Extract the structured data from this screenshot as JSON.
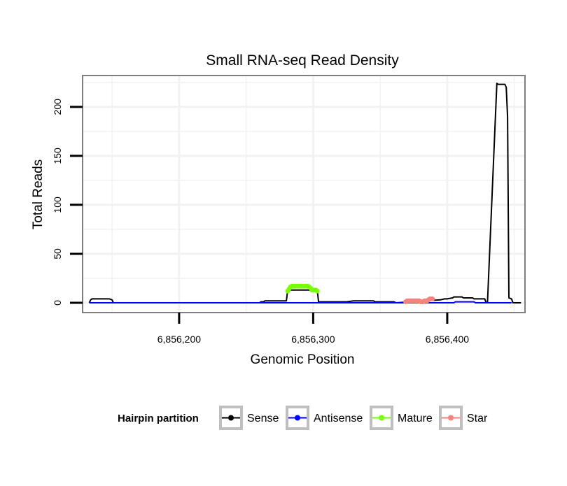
{
  "chart_data": {
    "type": "line",
    "title": "Small RNA-seq Read Density",
    "xlabel": "Genomic Position",
    "ylabel": "Total Reads",
    "xlim": [
      6856128,
      6856458
    ],
    "ylim": [
      -10,
      232
    ],
    "x_ticks": [
      6856200,
      6856300,
      6856400
    ],
    "x_tick_labels": [
      "6,856,200",
      "6,856,300",
      "6,856,400"
    ],
    "y_ticks": [
      0,
      50,
      100,
      150,
      200
    ],
    "y_tick_labels": [
      "0",
      "50",
      "100",
      "150",
      "200"
    ],
    "grid": true,
    "legend": {
      "title": "Hairpin partition",
      "position": "bottom",
      "entries": [
        "Sense",
        "Antisense",
        "Mature",
        "Star"
      ]
    },
    "series": [
      {
        "name": "Sense",
        "color": "#000000",
        "style": "line",
        "x": [
          6856133,
          6856134,
          6856135,
          6856148,
          6856150,
          6856151,
          6856260,
          6856261,
          6856263,
          6856264,
          6856280,
          6856281,
          6856303,
          6856304,
          6856305,
          6856320,
          6856325,
          6856330,
          6856332,
          6856345,
          6856346,
          6856360,
          6856362,
          6856395,
          6856398,
          6856400,
          6856404,
          6856405,
          6856411,
          6856412,
          6856419,
          6856420,
          6856428,
          6856429,
          6856430,
          6856437,
          6856438,
          6856443,
          6856444,
          6856445,
          6856446,
          6856448,
          6856449,
          6856450,
          6856455
        ],
        "y": [
          0,
          3,
          4,
          4,
          3,
          0,
          0,
          1,
          1,
          2,
          2,
          13,
          13,
          1,
          1,
          1,
          1,
          2,
          2,
          2,
          1,
          1,
          0,
          3,
          4,
          4,
          5,
          6,
          6,
          5,
          5,
          4,
          4,
          0,
          0,
          224,
          223,
          223,
          220,
          190,
          5,
          4,
          0,
          0,
          0
        ]
      },
      {
        "name": "Antisense",
        "color": "#0000ff",
        "style": "line",
        "x": [
          6856133,
          6856405,
          6856406,
          6856420,
          6856421,
          6856448
        ],
        "y": [
          0,
          0,
          1,
          1,
          0,
          0
        ]
      },
      {
        "name": "Mature",
        "color": "#77ff00",
        "style": "points",
        "x": [
          6856281,
          6856282,
          6856283,
          6856284,
          6856285,
          6856286,
          6856287,
          6856288,
          6856289,
          6856290,
          6856291,
          6856292,
          6856293,
          6856294,
          6856295,
          6856296,
          6856297,
          6856298,
          6856299,
          6856300,
          6856301,
          6856302,
          6856303
        ],
        "y": [
          12,
          14,
          16,
          17,
          17,
          17,
          17,
          17,
          17,
          17,
          17,
          17,
          17,
          17,
          17,
          17,
          16,
          15,
          13,
          13,
          13,
          13,
          12
        ]
      },
      {
        "name": "Star",
        "color": "#f4837d",
        "style": "points",
        "x": [
          6856369,
          6856370,
          6856371,
          6856372,
          6856373,
          6856374,
          6856375,
          6856376,
          6856377,
          6856378,
          6856379,
          6856380,
          6856381,
          6856382,
          6856383,
          6856384,
          6856385,
          6856386,
          6856387,
          6856388,
          6856389
        ],
        "y": [
          1,
          2,
          2,
          2,
          2,
          2,
          2,
          2,
          2,
          2,
          2,
          1,
          1,
          1,
          2,
          2,
          2,
          3,
          4,
          4,
          4
        ]
      }
    ]
  }
}
